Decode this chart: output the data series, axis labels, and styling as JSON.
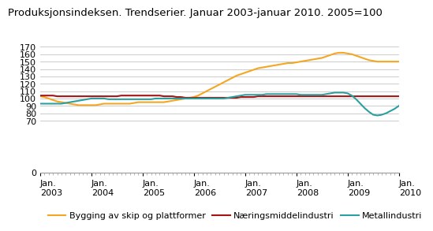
{
  "title": "Produksjonsindeksen. Trendserier. Januar 2003-januar 2010. 2005=100",
  "ylim": [
    0,
    170
  ],
  "yticks": [
    0,
    70,
    80,
    90,
    100,
    110,
    120,
    130,
    140,
    150,
    160,
    170
  ],
  "background_color": "#ffffff",
  "grid_color": "#cccccc",
  "bygging_label": "Bygging av skip og plattformer",
  "bygging_color": "#f5a623",
  "bygging_data": [
    103,
    102,
    100,
    98,
    96,
    95,
    94,
    93,
    92,
    91,
    91,
    91,
    91,
    91,
    92,
    93,
    93,
    93,
    93,
    93,
    93,
    93,
    94,
    95,
    95,
    95,
    95,
    95,
    95,
    95,
    96,
    97,
    98,
    99,
    100,
    101,
    102,
    104,
    107,
    110,
    113,
    116,
    119,
    122,
    125,
    128,
    131,
    133,
    135,
    137,
    139,
    141,
    142,
    143,
    144,
    145,
    146,
    147,
    148,
    148,
    149,
    150,
    151,
    152,
    153,
    154,
    155,
    157,
    159,
    161,
    162,
    162,
    161,
    160,
    158,
    156,
    154,
    152,
    151,
    150,
    150,
    150,
    150,
    150,
    150
  ],
  "naering_label": "Næringsmiddelindustri",
  "naering_color": "#a31515",
  "naering_data": [
    104,
    104,
    104,
    104,
    103,
    103,
    103,
    103,
    103,
    103,
    103,
    103,
    103,
    103,
    103,
    103,
    103,
    103,
    103,
    104,
    104,
    104,
    104,
    104,
    104,
    104,
    104,
    104,
    104,
    103,
    103,
    103,
    102,
    102,
    101,
    101,
    101,
    101,
    101,
    101,
    101,
    101,
    101,
    101,
    101,
    101,
    101,
    102,
    102,
    102,
    102,
    103,
    103,
    103,
    103,
    103,
    103,
    103,
    103,
    103,
    103,
    103,
    103,
    103,
    103,
    103,
    103,
    103,
    103,
    103,
    103,
    103,
    103,
    103,
    103,
    103,
    103,
    103,
    103,
    103,
    103,
    103,
    103,
    103,
    103
  ],
  "metall_label": "Metallindustri",
  "metall_color": "#2ca0a0",
  "metall_data": [
    93,
    93,
    93,
    93,
    93,
    93,
    94,
    95,
    96,
    97,
    98,
    99,
    100,
    100,
    100,
    100,
    99,
    99,
    99,
    99,
    99,
    99,
    99,
    99,
    99,
    99,
    99,
    100,
    100,
    100,
    100,
    100,
    100,
    100,
    100,
    100,
    100,
    100,
    100,
    100,
    100,
    100,
    100,
    100,
    101,
    102,
    103,
    104,
    105,
    105,
    105,
    105,
    105,
    106,
    106,
    106,
    106,
    106,
    106,
    106,
    106,
    105,
    105,
    105,
    105,
    105,
    105,
    106,
    107,
    108,
    108,
    108,
    107,
    104,
    99,
    93,
    87,
    82,
    78,
    77,
    78,
    80,
    83,
    86,
    90
  ],
  "n_points": 85,
  "xtick_positions": [
    0,
    12,
    24,
    36,
    48,
    60,
    72,
    84
  ],
  "xtick_labels": [
    "Jan.\n2003",
    "Jan.\n2004",
    "Jan.\n2005",
    "Jan.\n2006",
    "Jan.\n2007",
    "Jan.\n2008",
    "Jan.\n2009",
    "Jan.\n2010"
  ],
  "title_fontsize": 9.5,
  "axis_fontsize": 8,
  "legend_fontsize": 8
}
